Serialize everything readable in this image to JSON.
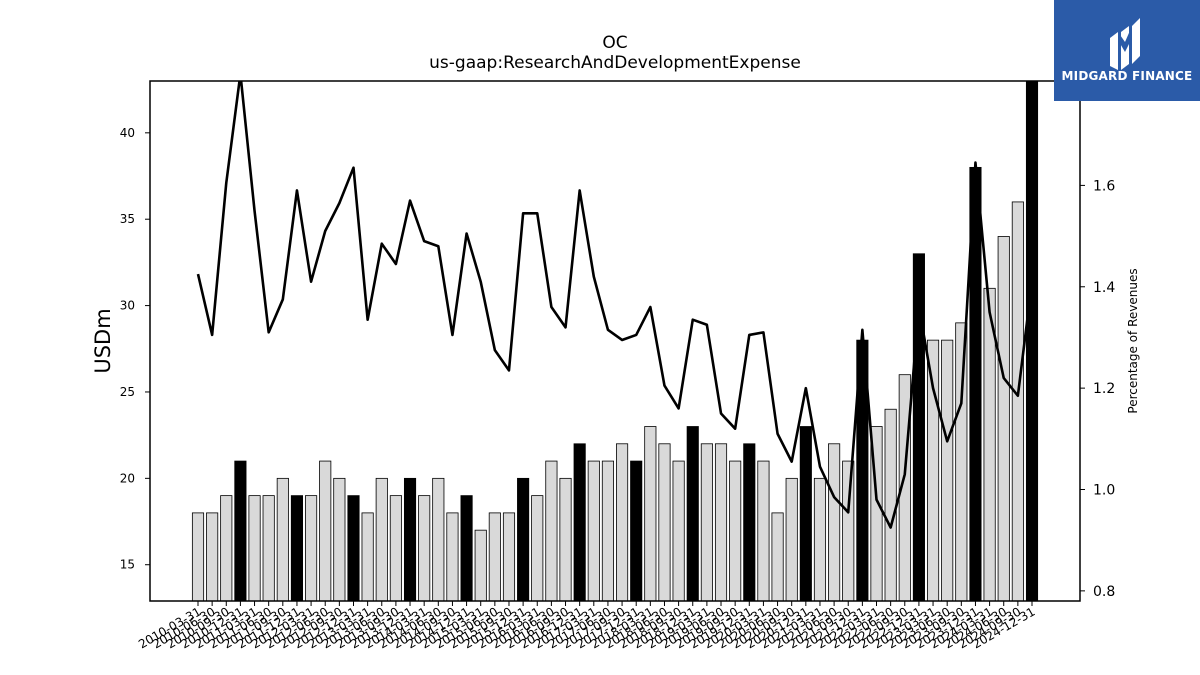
{
  "chart_data": {
    "type": "bar",
    "title": "OC",
    "subtitle": "us-gaap:ResearchAndDevelopmentExpense",
    "ylabel": "USDm",
    "ylabel_right": "Percentage of Revenues",
    "ylim": [
      12.9,
      43.0
    ],
    "ylim_right": [
      0.78,
      1.806
    ],
    "yticks": [
      15,
      20,
      25,
      30,
      35,
      40
    ],
    "yticks_right": [
      0.8,
      1.0,
      1.2,
      1.4,
      1.6
    ],
    "categories": [
      "2010-03-31",
      "2010-06-30",
      "2010-09-30",
      "2010-12-31",
      "2011-03-31",
      "2011-06-30",
      "2011-09-30",
      "2011-12-31",
      "2012-03-31",
      "2012-06-30",
      "2012-09-30",
      "2012-12-31",
      "2013-03-31",
      "2013-06-30",
      "2013-09-30",
      "2013-12-31",
      "2014-03-31",
      "2014-06-30",
      "2014-09-30",
      "2014-12-31",
      "2015-03-31",
      "2015-06-30",
      "2015-09-30",
      "2015-12-31",
      "2016-03-31",
      "2016-06-30",
      "2016-09-30",
      "2016-12-31",
      "2017-03-31",
      "2017-06-30",
      "2017-09-30",
      "2017-12-31",
      "2018-03-31",
      "2018-06-30",
      "2018-09-30",
      "2018-12-31",
      "2019-03-31",
      "2019-06-30",
      "2019-09-30",
      "2019-12-31",
      "2020-03-31",
      "2020-06-30",
      "2020-09-30",
      "2020-12-31",
      "2021-03-31",
      "2021-06-30",
      "2021-09-30",
      "2021-12-31",
      "2022-03-31",
      "2022-06-30",
      "2022-09-30",
      "2022-12-31",
      "2023-03-31",
      "2023-06-30",
      "2023-09-30",
      "2023-12-31",
      "2024-03-31",
      "2024-06-30",
      "2024-09-30",
      "2024-12-31"
    ],
    "series": [
      {
        "type": "bar",
        "values": [
          18,
          18,
          19,
          21,
          19,
          19,
          20,
          19,
          19,
          21,
          20,
          19,
          18,
          20,
          19,
          20,
          19,
          20,
          18,
          19,
          17,
          18,
          18,
          20,
          19,
          21,
          20,
          22,
          21,
          21,
          22,
          21,
          23,
          22,
          21,
          23,
          22,
          22,
          21,
          22,
          21,
          18,
          20,
          23,
          20,
          22,
          21,
          28,
          23,
          24,
          26,
          33,
          28,
          28,
          29,
          38,
          31,
          34,
          36,
          43
        ],
        "highlight_quarter": "12-31",
        "colors": {
          "regular": "#d9d9d9",
          "highlight": "#000000"
        }
      },
      {
        "type": "line",
        "axis": "right",
        "color": "#000000",
        "values": [
          1.425,
          1.305,
          1.605,
          1.82,
          1.55,
          1.31,
          1.375,
          1.59,
          1.41,
          1.51,
          1.565,
          1.635,
          1.335,
          1.485,
          1.445,
          1.57,
          1.49,
          1.48,
          1.305,
          1.505,
          1.41,
          1.275,
          1.235,
          1.545,
          1.545,
          1.36,
          1.32,
          1.59,
          1.42,
          1.315,
          1.295,
          1.305,
          1.36,
          1.205,
          1.16,
          1.335,
          1.325,
          1.15,
          1.12,
          1.305,
          1.31,
          1.11,
          1.055,
          1.2,
          1.045,
          0.985,
          0.955,
          1.315,
          0.98,
          0.925,
          1.03,
          1.36,
          1.2,
          1.095,
          1.17,
          1.645,
          1.35,
          1.22,
          1.185,
          1.41
        ]
      }
    ],
    "grid": false,
    "legend": "none"
  },
  "logo": {
    "text": "MIDGARD FINANCE",
    "icon": "midgard-logo-icon",
    "background": "#2b5ba8"
  }
}
